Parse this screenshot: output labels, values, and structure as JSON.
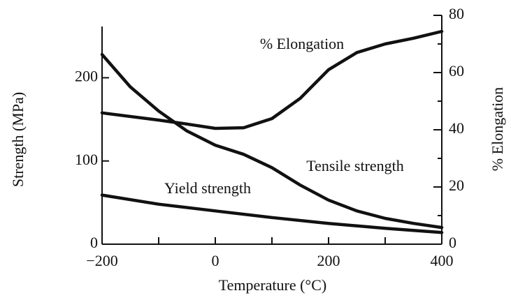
{
  "chart_data": {
    "type": "line",
    "xlabel": "Temperature (°C)",
    "ylabel": "Strength (MPa)",
    "y2label": "% Elongation",
    "xlim": [
      -200,
      400
    ],
    "xticks": [
      {
        "value": -200,
        "label": "−200"
      },
      0,
      200,
      400
    ],
    "xminorticks": [
      -100,
      100,
      300
    ],
    "ylim": [
      0,
      275
    ],
    "yticks": [
      0,
      100,
      200
    ],
    "y2lim": [
      0,
      80
    ],
    "y2ticks": [
      0,
      20,
      40,
      60,
      80
    ],
    "y2minorticks": [
      10,
      30,
      50,
      70
    ],
    "annotations": [
      "% Elongation",
      "Tensile strength",
      "Yield strength"
    ],
    "series": [
      {
        "name": "% Elongation",
        "color": "#111111",
        "axis": "y2",
        "x": [
          -200,
          -100,
          -50,
          0,
          50,
          100,
          150,
          200,
          250,
          300,
          350,
          400
        ],
        "values": [
          45.9,
          43.4,
          42,
          40.5,
          40.7,
          43.9,
          51,
          61,
          67,
          70,
          72,
          74.4
        ]
      },
      {
        "name": "Tensile strength",
        "color": "#111111",
        "axis": "y",
        "x": [
          -200,
          -150,
          -100,
          -50,
          0,
          50,
          100,
          150,
          200,
          250,
          300,
          350,
          400
        ],
        "values": [
          228,
          189,
          160,
          136,
          119,
          108,
          92,
          71,
          53,
          40,
          31,
          25,
          20
        ]
      },
      {
        "name": "Yield strength",
        "color": "#111111",
        "axis": "y",
        "x": [
          -200,
          -100,
          0,
          100,
          200,
          300,
          400
        ],
        "values": [
          59,
          48,
          40,
          32,
          25,
          19,
          14
        ]
      }
    ]
  }
}
